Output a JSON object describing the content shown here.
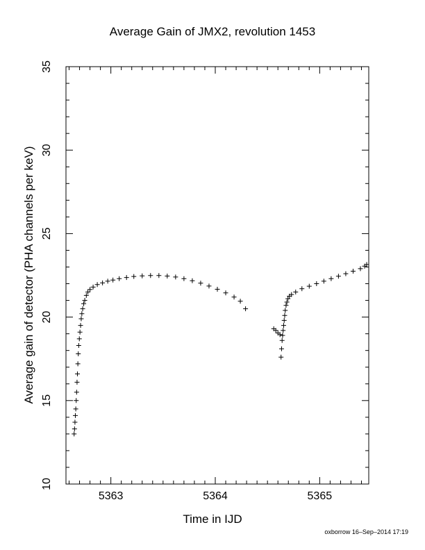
{
  "chart_data": {
    "type": "scatter",
    "title": "Average Gain of JMX2, revolution 1453",
    "xlabel": "Time in IJD",
    "ylabel": "Average gain of detector (PHA channels per keV)",
    "xlim": [
      5362.57,
      5365.47
    ],
    "ylim": [
      10,
      35
    ],
    "x_ticks": [
      5363,
      5364,
      5365
    ],
    "y_ticks": [
      10,
      15,
      20,
      25,
      30,
      35
    ],
    "grid": false,
    "marker": "plus",
    "credit": "oxborrow 16–Sep–2014 17:19",
    "series": [
      {
        "points": [
          [
            5362.648,
            13.0
          ],
          [
            5362.652,
            13.3
          ],
          [
            5362.656,
            13.7
          ],
          [
            5362.66,
            14.1
          ],
          [
            5362.664,
            14.5
          ],
          [
            5362.668,
            15.0
          ],
          [
            5362.672,
            15.5
          ],
          [
            5362.676,
            16.1
          ],
          [
            5362.68,
            16.6
          ],
          [
            5362.684,
            17.2
          ],
          [
            5362.688,
            17.8
          ],
          [
            5362.692,
            18.3
          ],
          [
            5362.698,
            18.7
          ],
          [
            5362.704,
            19.1
          ],
          [
            5362.71,
            19.5
          ],
          [
            5362.716,
            19.9
          ],
          [
            5362.722,
            20.2
          ],
          [
            5362.73,
            20.5
          ],
          [
            5362.74,
            20.8
          ],
          [
            5362.75,
            21.0
          ],
          [
            5362.765,
            21.3
          ],
          [
            5362.78,
            21.5
          ],
          [
            5362.8,
            21.65
          ],
          [
            5362.83,
            21.8
          ],
          [
            5362.87,
            21.95
          ],
          [
            5362.92,
            22.05
          ],
          [
            5362.97,
            22.15
          ],
          [
            5363.02,
            22.22
          ],
          [
            5363.08,
            22.3
          ],
          [
            5363.15,
            22.37
          ],
          [
            5363.22,
            22.43
          ],
          [
            5363.3,
            22.47
          ],
          [
            5363.38,
            22.49
          ],
          [
            5363.46,
            22.49
          ],
          [
            5363.54,
            22.46
          ],
          [
            5363.62,
            22.4
          ],
          [
            5363.7,
            22.3
          ],
          [
            5363.78,
            22.18
          ],
          [
            5363.86,
            22.03
          ],
          [
            5363.94,
            21.86
          ],
          [
            5364.02,
            21.67
          ],
          [
            5364.1,
            21.45
          ],
          [
            5364.18,
            21.2
          ],
          [
            5364.24,
            20.95
          ],
          [
            5364.29,
            20.5
          ],
          [
            5364.56,
            19.3
          ],
          [
            5364.58,
            19.2
          ],
          [
            5364.6,
            19.05
          ],
          [
            5364.62,
            18.95
          ],
          [
            5364.63,
            17.6
          ],
          [
            5364.635,
            18.1
          ],
          [
            5364.64,
            18.6
          ],
          [
            5364.645,
            18.9
          ],
          [
            5364.65,
            19.2
          ],
          [
            5364.655,
            19.5
          ],
          [
            5364.66,
            19.8
          ],
          [
            5364.665,
            20.1
          ],
          [
            5364.67,
            20.4
          ],
          [
            5364.678,
            20.7
          ],
          [
            5364.686,
            20.9
          ],
          [
            5364.696,
            21.1
          ],
          [
            5364.71,
            21.25
          ],
          [
            5364.73,
            21.35
          ],
          [
            5364.77,
            21.5
          ],
          [
            5364.83,
            21.7
          ],
          [
            5364.9,
            21.85
          ],
          [
            5364.97,
            22.0
          ],
          [
            5365.04,
            22.15
          ],
          [
            5365.11,
            22.3
          ],
          [
            5365.18,
            22.45
          ],
          [
            5365.25,
            22.6
          ],
          [
            5365.32,
            22.75
          ],
          [
            5365.39,
            22.9
          ],
          [
            5365.43,
            23.05
          ],
          [
            5365.45,
            23.15
          ]
        ]
      }
    ]
  }
}
